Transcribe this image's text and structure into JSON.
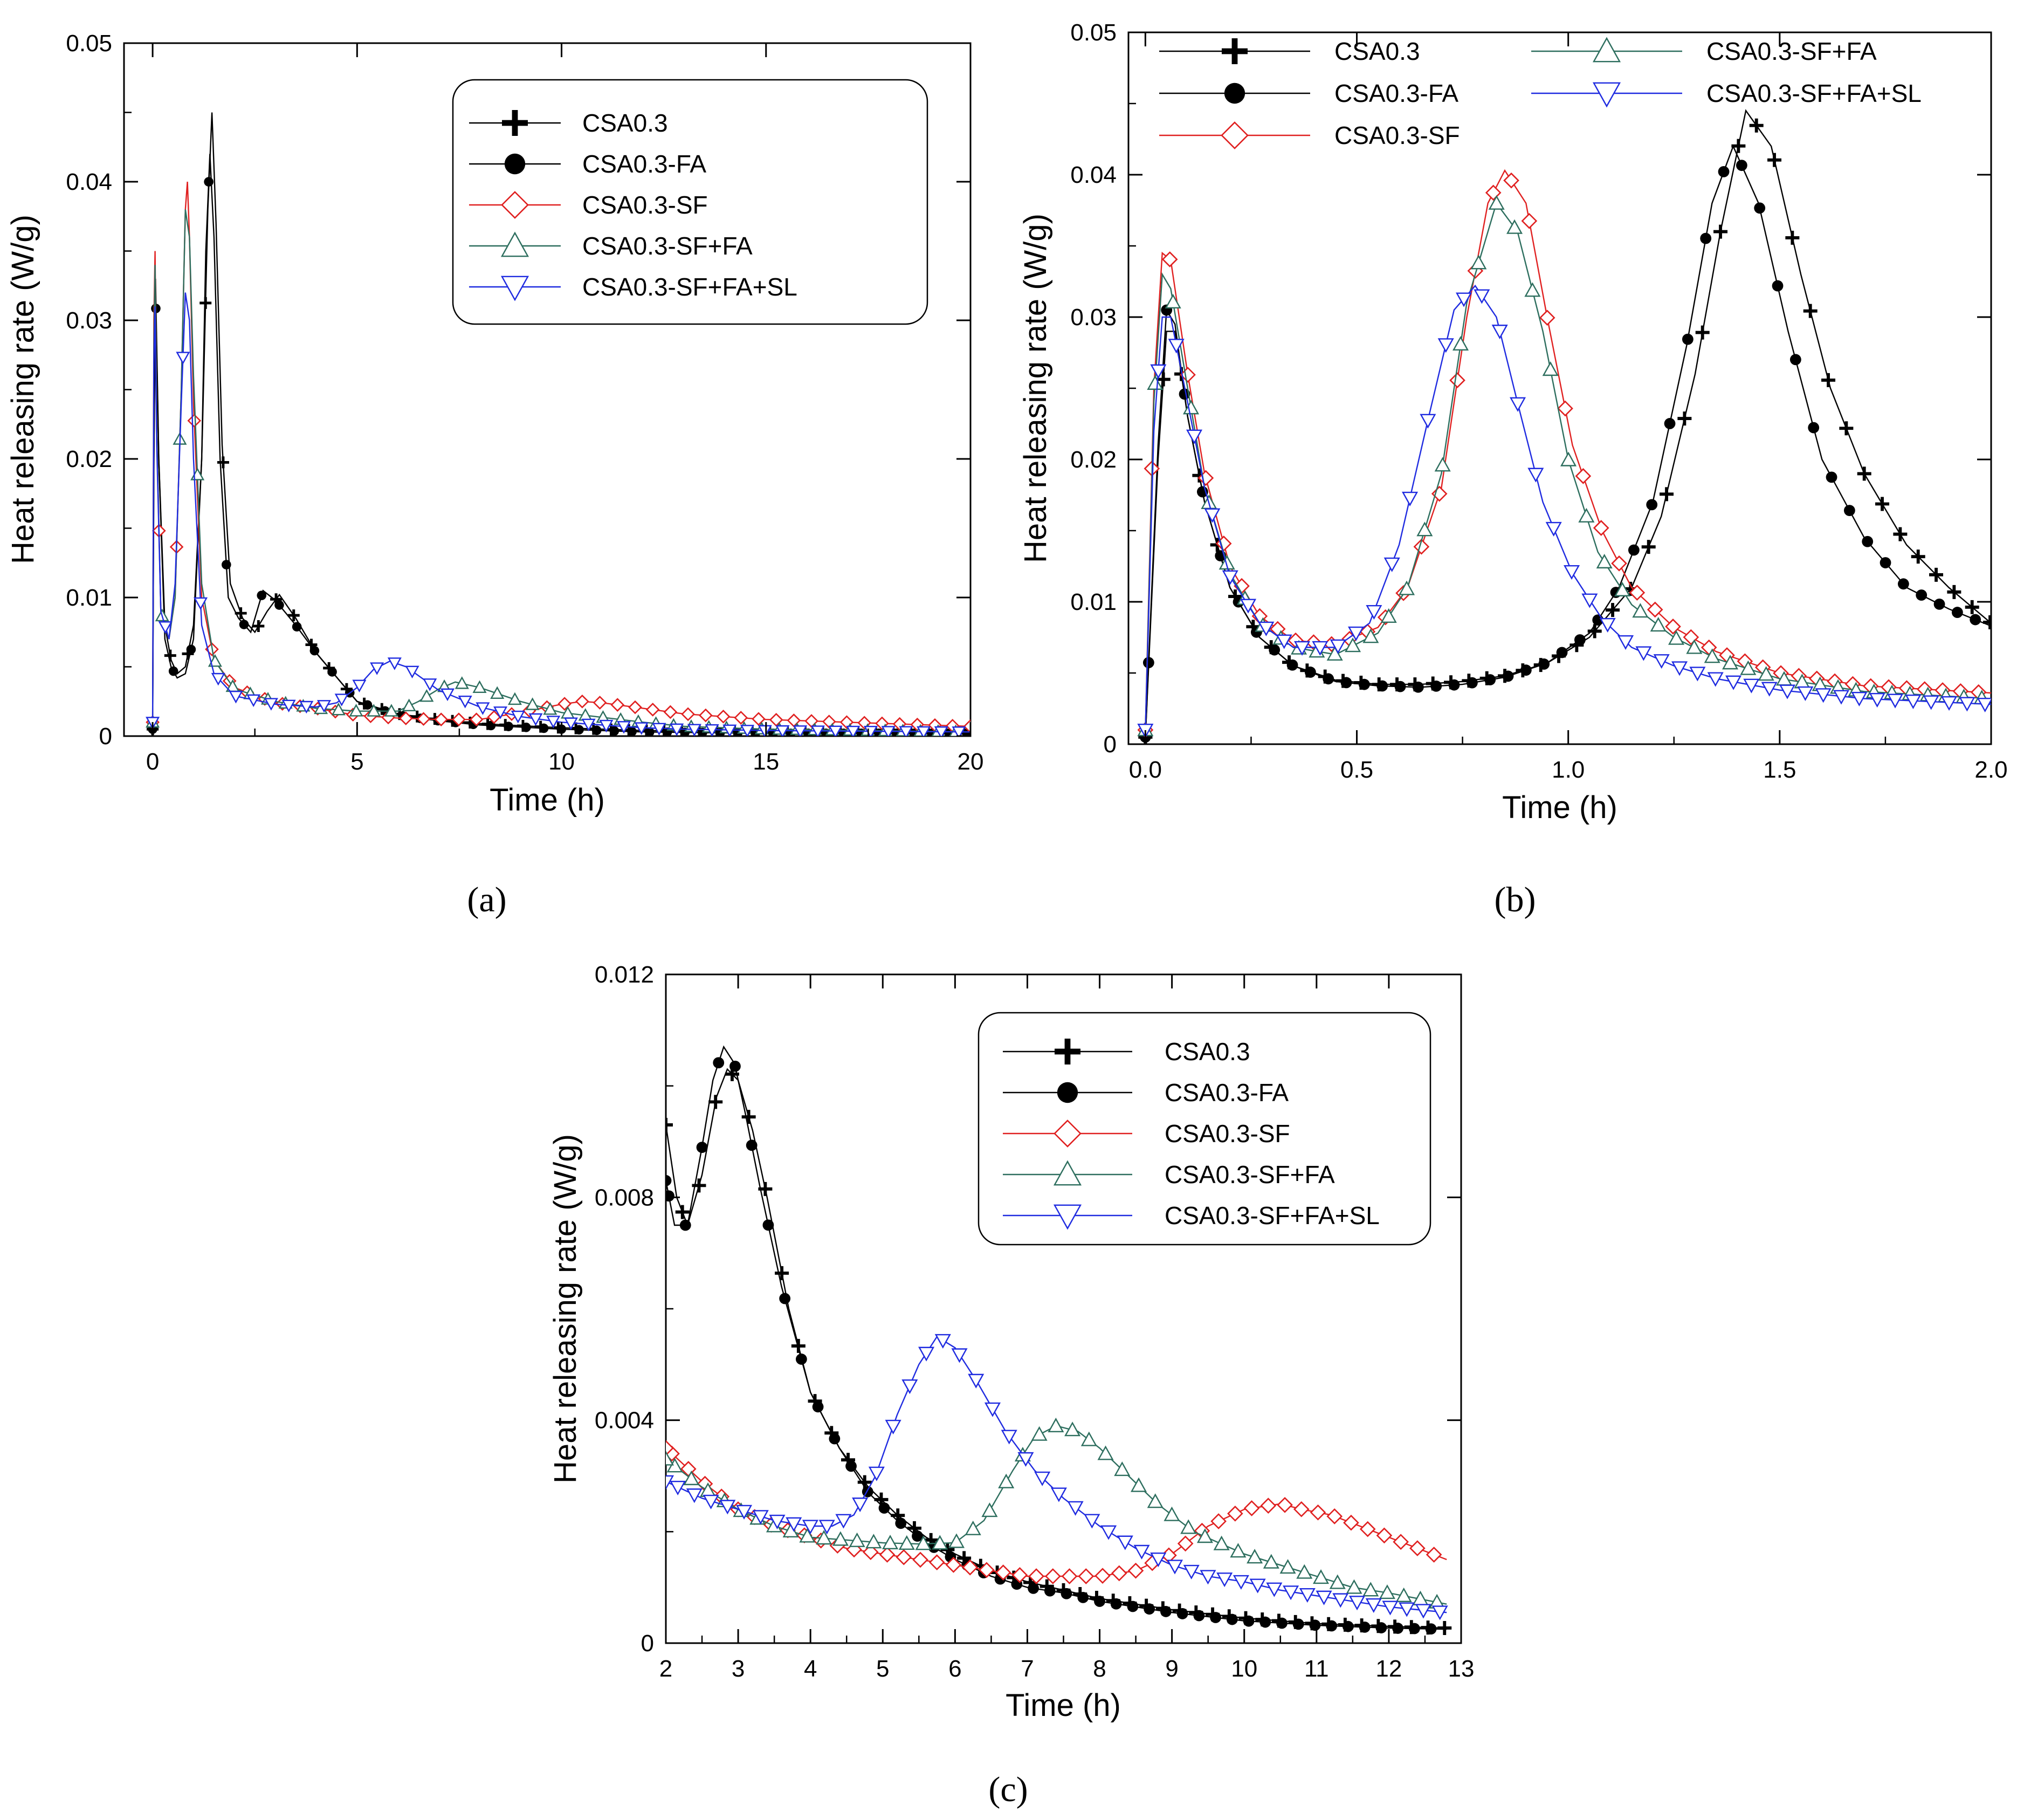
{
  "figure": {
    "panel_labels": [
      "(a)",
      "(b)",
      "(c)"
    ]
  },
  "legend": {
    "entries": [
      "CSA0.3",
      "CSA0.3-FA",
      "CSA0.3-SF",
      "CSA0.3-SF+FA",
      "CSA0.3-SF+FA+SL"
    ]
  },
  "colors": {
    "CSA0.3": "#000000",
    "CSA0.3-FA": "#000000",
    "CSA0.3-SF": "#e02020",
    "CSA0.3-SF+FA": "#2d6e5e",
    "CSA0.3-SF+FA+SL": "#1f2be0"
  },
  "markers": {
    "CSA0.3": "plus-icon",
    "CSA0.3-FA": "filled-circle-icon",
    "CSA0.3-SF": "diamond-icon",
    "CSA0.3-SF+FA": "triangle-up-icon",
    "CSA0.3-SF+FA+SL": "triangle-down-icon"
  },
  "chart_data": [
    {
      "id": "a",
      "type": "line",
      "panel_label": "(a)",
      "xlabel": "Time (h)",
      "ylabel": "Heat releasing rate (W/g)",
      "xlim": [
        -0.7,
        20
      ],
      "ylim": [
        0,
        0.05
      ],
      "xticks": [
        0,
        5,
        10,
        15,
        20
      ],
      "xtick_labels": [
        "0",
        "5",
        "10",
        "15",
        "20"
      ],
      "yticks": [
        0,
        0.01,
        0.02,
        0.03,
        0.04,
        0.05
      ],
      "ytick_labels": [
        "0",
        "0.01",
        "0.02",
        "0.03",
        "0.04",
        "0.05"
      ],
      "legend_position": "top-right",
      "series": [
        {
          "name": "CSA0.3",
          "x": [
            0,
            0.03,
            0.07,
            0.15,
            0.3,
            0.45,
            0.6,
            0.8,
            1.0,
            1.2,
            1.35,
            1.45,
            1.55,
            1.7,
            1.9,
            2.2,
            2.5,
            2.8,
            3.1,
            3.5,
            4.0,
            5,
            6,
            7,
            8,
            10,
            12,
            15,
            20
          ],
          "y": [
            0.0005,
            0.02,
            0.033,
            0.02,
            0.008,
            0.0055,
            0.0045,
            0.005,
            0.008,
            0.02,
            0.038,
            0.045,
            0.037,
            0.021,
            0.011,
            0.0085,
            0.0075,
            0.009,
            0.0102,
            0.0085,
            0.006,
            0.0025,
            0.0016,
            0.0012,
            0.0009,
            0.0006,
            0.0004,
            0.0003,
            0.0002
          ]
        },
        {
          "name": "CSA0.3-FA",
          "x": [
            0,
            0.03,
            0.07,
            0.15,
            0.3,
            0.45,
            0.6,
            0.8,
            1.0,
            1.2,
            1.3,
            1.4,
            1.5,
            1.65,
            1.85,
            2.1,
            2.4,
            2.7,
            3.0,
            3.5,
            4.0,
            5,
            6,
            7,
            8,
            10,
            12,
            15,
            20
          ],
          "y": [
            0.0005,
            0.02,
            0.032,
            0.02,
            0.007,
            0.005,
            0.0042,
            0.0045,
            0.007,
            0.02,
            0.035,
            0.042,
            0.036,
            0.02,
            0.01,
            0.0085,
            0.0075,
            0.0105,
            0.0098,
            0.008,
            0.006,
            0.0025,
            0.0015,
            0.0011,
            0.0008,
            0.0005,
            0.0003,
            0.0002,
            0.0002
          ]
        },
        {
          "name": "CSA0.3-SF",
          "x": [
            0,
            0.03,
            0.06,
            0.1,
            0.2,
            0.4,
            0.55,
            0.7,
            0.8,
            0.85,
            0.9,
            1.0,
            1.2,
            1.5,
            2,
            3,
            4,
            5,
            6,
            7,
            8,
            9,
            10,
            10.5,
            11,
            12,
            13,
            15,
            20
          ],
          "y": [
            0.001,
            0.03,
            0.035,
            0.022,
            0.009,
            0.007,
            0.01,
            0.025,
            0.038,
            0.04,
            0.036,
            0.024,
            0.01,
            0.0055,
            0.0035,
            0.0024,
            0.002,
            0.0015,
            0.0013,
            0.0012,
            0.0012,
            0.0017,
            0.0023,
            0.0025,
            0.0024,
            0.002,
            0.0016,
            0.0012,
            0.0007
          ]
        },
        {
          "name": "CSA0.3-SF+FA",
          "x": [
            0,
            0.03,
            0.06,
            0.1,
            0.2,
            0.4,
            0.55,
            0.7,
            0.8,
            0.9,
            1.0,
            1.2,
            1.5,
            2,
            3,
            4,
            5,
            6,
            6.5,
            7,
            7.4,
            8,
            9,
            10,
            12,
            13,
            15,
            20
          ],
          "y": [
            0.001,
            0.028,
            0.034,
            0.022,
            0.009,
            0.007,
            0.01,
            0.025,
            0.038,
            0.036,
            0.026,
            0.011,
            0.0055,
            0.0034,
            0.0025,
            0.002,
            0.0018,
            0.0018,
            0.0025,
            0.0034,
            0.0039,
            0.0035,
            0.0025,
            0.0017,
            0.001,
            0.0007,
            0.0005,
            0.0003
          ]
        },
        {
          "name": "CSA0.3-SF+FA+SL",
          "x": [
            0,
            0.03,
            0.06,
            0.1,
            0.2,
            0.4,
            0.55,
            0.7,
            0.8,
            0.9,
            1.0,
            1.2,
            1.5,
            2,
            3,
            4,
            4.5,
            5,
            5.4,
            5.8,
            6.2,
            7,
            8,
            9,
            10,
            12,
            13,
            15,
            20
          ],
          "y": [
            0.001,
            0.027,
            0.031,
            0.021,
            0.009,
            0.007,
            0.011,
            0.024,
            0.032,
            0.03,
            0.02,
            0.008,
            0.0045,
            0.0029,
            0.0023,
            0.0021,
            0.0024,
            0.0035,
            0.0048,
            0.0054,
            0.005,
            0.0033,
            0.0021,
            0.0014,
            0.001,
            0.0006,
            0.0005,
            0.0004,
            0.0003
          ]
        }
      ]
    },
    {
      "id": "b",
      "type": "line",
      "panel_label": "(b)",
      "xlabel": "Time (h)",
      "ylabel": "Heat releasing rate (W/g)",
      "xlim": [
        -0.04,
        2.0
      ],
      "ylim": [
        0,
        0.05
      ],
      "xticks": [
        0,
        0.5,
        1.0,
        1.5,
        2.0
      ],
      "xtick_labels": [
        "0.0",
        "0.5",
        "1.0",
        "1.5",
        "2.0"
      ],
      "yticks": [
        0,
        0.01,
        0.02,
        0.03,
        0.04,
        0.05
      ],
      "ytick_labels": [
        "0",
        "0.01",
        "0.02",
        "0.03",
        "0.04",
        "0.05"
      ],
      "legend_position": "top",
      "series": [
        {
          "name": "CSA0.3",
          "x": [
            0,
            0.03,
            0.05,
            0.07,
            0.1,
            0.14,
            0.2,
            0.27,
            0.35,
            0.45,
            0.55,
            0.65,
            0.75,
            0.85,
            0.95,
            1.05,
            1.15,
            1.22,
            1.3,
            1.36,
            1.42,
            1.48,
            1.55,
            1.62,
            1.7,
            1.8,
            1.9,
            2.0
          ],
          "y": [
            0.0005,
            0.02,
            0.029,
            0.029,
            0.023,
            0.017,
            0.011,
            0.0075,
            0.0055,
            0.0045,
            0.0042,
            0.0042,
            0.0044,
            0.0048,
            0.0057,
            0.0075,
            0.011,
            0.016,
            0.026,
            0.036,
            0.0445,
            0.042,
            0.033,
            0.025,
            0.019,
            0.014,
            0.011,
            0.0085
          ]
        },
        {
          "name": "CSA0.3-FA",
          "x": [
            0,
            0.03,
            0.05,
            0.07,
            0.1,
            0.14,
            0.2,
            0.27,
            0.35,
            0.45,
            0.55,
            0.65,
            0.75,
            0.85,
            0.95,
            1.05,
            1.12,
            1.2,
            1.28,
            1.34,
            1.39,
            1.45,
            1.52,
            1.6,
            1.7,
            1.8,
            1.9,
            2.0
          ],
          "y": [
            0.0005,
            0.021,
            0.0305,
            0.0295,
            0.023,
            0.017,
            0.011,
            0.0075,
            0.0055,
            0.0044,
            0.0041,
            0.004,
            0.0042,
            0.0047,
            0.0057,
            0.0078,
            0.011,
            0.017,
            0.028,
            0.038,
            0.042,
            0.038,
            0.029,
            0.02,
            0.0145,
            0.011,
            0.0095,
            0.0083
          ]
        },
        {
          "name": "CSA0.3-SF",
          "x": [
            0,
            0.02,
            0.04,
            0.06,
            0.1,
            0.14,
            0.2,
            0.27,
            0.35,
            0.45,
            0.55,
            0.62,
            0.7,
            0.76,
            0.81,
            0.85,
            0.9,
            0.95,
            1.01,
            1.08,
            1.15,
            1.25,
            1.35,
            1.5,
            1.7,
            2.0
          ],
          "y": [
            0.001,
            0.025,
            0.0345,
            0.034,
            0.026,
            0.019,
            0.0125,
            0.009,
            0.0073,
            0.007,
            0.0082,
            0.011,
            0.018,
            0.03,
            0.038,
            0.0403,
            0.038,
            0.03,
            0.021,
            0.015,
            0.011,
            0.0082,
            0.0065,
            0.005,
            0.0041,
            0.0036
          ]
        },
        {
          "name": "CSA0.3-SF+FA",
          "x": [
            0,
            0.02,
            0.04,
            0.06,
            0.1,
            0.14,
            0.2,
            0.27,
            0.35,
            0.45,
            0.55,
            0.62,
            0.7,
            0.76,
            0.83,
            0.88,
            0.94,
            1.0,
            1.07,
            1.15,
            1.25,
            1.35,
            1.5,
            1.7,
            2.0
          ],
          "y": [
            0.001,
            0.024,
            0.033,
            0.032,
            0.025,
            0.018,
            0.012,
            0.0085,
            0.0068,
            0.0063,
            0.0078,
            0.011,
            0.019,
            0.031,
            0.038,
            0.036,
            0.029,
            0.02,
            0.0135,
            0.0098,
            0.0075,
            0.006,
            0.0046,
            0.0037,
            0.0032
          ]
        },
        {
          "name": "CSA0.3-SF+FA+SL",
          "x": [
            0,
            0.02,
            0.04,
            0.06,
            0.1,
            0.14,
            0.2,
            0.27,
            0.35,
            0.45,
            0.53,
            0.6,
            0.67,
            0.73,
            0.78,
            0.83,
            0.88,
            0.94,
            1.01,
            1.08,
            1.15,
            1.25,
            1.35,
            1.5,
            1.7,
            2.0
          ],
          "y": [
            0.001,
            0.022,
            0.03,
            0.03,
            0.024,
            0.018,
            0.0118,
            0.0085,
            0.0068,
            0.0068,
            0.0085,
            0.014,
            0.023,
            0.0305,
            0.0322,
            0.03,
            0.024,
            0.017,
            0.012,
            0.0088,
            0.0068,
            0.0055,
            0.0046,
            0.0038,
            0.0032,
            0.0028
          ]
        }
      ]
    },
    {
      "id": "c",
      "type": "line",
      "panel_label": "(c)",
      "xlabel": "Time (h)",
      "ylabel": "Heat releasing rate (W/g)",
      "xlim": [
        2,
        13
      ],
      "ylim": [
        0,
        0.012
      ],
      "xticks": [
        2,
        3,
        4,
        5,
        6,
        7,
        8,
        9,
        10,
        11,
        12,
        13
      ],
      "xtick_labels": [
        "2",
        "3",
        "4",
        "5",
        "6",
        "7",
        "8",
        "9",
        "10",
        "11",
        "12",
        "13"
      ],
      "yticks": [
        0,
        0.004,
        0.008,
        0.012
      ],
      "ytick_labels": [
        "0",
        "0.004",
        "0.008",
        "0.012"
      ],
      "legend_position": "top-right",
      "series": [
        {
          "name": "CSA0.3",
          "x": [
            2.0,
            2.15,
            2.3,
            2.5,
            2.7,
            2.85,
            3.0,
            3.2,
            3.4,
            3.7,
            4.0,
            4.4,
            4.8,
            5.2,
            5.6,
            6.0,
            6.5,
            7.0,
            7.5,
            8,
            9,
            10,
            11,
            12,
            12.8
          ],
          "y": [
            0.0093,
            0.008,
            0.0075,
            0.0084,
            0.0098,
            0.0103,
            0.0101,
            0.0092,
            0.008,
            0.006,
            0.0045,
            0.0035,
            0.0028,
            0.0023,
            0.0019,
            0.0016,
            0.0013,
            0.0011,
            0.00095,
            0.0008,
            0.0006,
            0.00045,
            0.00035,
            0.0003,
            0.00027
          ]
        },
        {
          "name": "CSA0.3-FA",
          "x": [
            2.0,
            2.12,
            2.3,
            2.5,
            2.65,
            2.8,
            2.95,
            3.1,
            3.3,
            3.6,
            4.0,
            4.4,
            4.8,
            5.2,
            5.6,
            6.0,
            6.5,
            7.0,
            7.5,
            8,
            9,
            10,
            11,
            12,
            12.8
          ],
          "y": [
            0.0083,
            0.0075,
            0.0075,
            0.0089,
            0.0101,
            0.0107,
            0.0104,
            0.0095,
            0.0082,
            0.0064,
            0.0045,
            0.0035,
            0.0027,
            0.0022,
            0.0018,
            0.0015,
            0.0012,
            0.001,
            0.0009,
            0.00075,
            0.00055,
            0.0004,
            0.00032,
            0.00027,
            0.00025
          ]
        },
        {
          "name": "CSA0.3-SF",
          "x": [
            2,
            2.5,
            3,
            3.5,
            4,
            4.5,
            5,
            5.5,
            6,
            6.5,
            7,
            7.5,
            8,
            8.5,
            9,
            9.5,
            10,
            10.5,
            10.8,
            11.2,
            11.6,
            12,
            12.4,
            12.8
          ],
          "y": [
            0.0035,
            0.0029,
            0.0024,
            0.0021,
            0.0019,
            0.0017,
            0.0016,
            0.0015,
            0.0014,
            0.0013,
            0.0012,
            0.0012,
            0.0012,
            0.0013,
            0.0016,
            0.0021,
            0.0024,
            0.0025,
            0.0024,
            0.0023,
            0.0021,
            0.0019,
            0.0017,
            0.0015
          ]
        },
        {
          "name": "CSA0.3-SF+FA",
          "x": [
            2,
            2.5,
            3,
            3.5,
            4,
            4.5,
            5,
            5.5,
            6,
            6.4,
            6.8,
            7.1,
            7.4,
            7.7,
            8,
            8.4,
            8.8,
            9.3,
            10,
            10.5,
            11,
            11.5,
            12,
            12.4,
            12.8
          ],
          "y": [
            0.0033,
            0.0028,
            0.0024,
            0.0021,
            0.0019,
            0.00185,
            0.0018,
            0.00178,
            0.0018,
            0.0022,
            0.0031,
            0.0037,
            0.0039,
            0.0038,
            0.0035,
            0.003,
            0.0025,
            0.002,
            0.0016,
            0.0014,
            0.0012,
            0.001,
            0.0009,
            0.0008,
            0.0007
          ]
        },
        {
          "name": "CSA0.3-SF+FA+SL",
          "x": [
            2,
            2.5,
            3,
            3.5,
            4,
            4.3,
            4.6,
            4.9,
            5.2,
            5.5,
            5.75,
            6.0,
            6.3,
            6.7,
            7.1,
            7.5,
            8,
            8.5,
            9,
            9.5,
            10,
            10.5,
            11,
            11.5,
            12,
            12.4,
            12.8
          ],
          "y": [
            0.0029,
            0.0026,
            0.0024,
            0.0022,
            0.0021,
            0.0021,
            0.0023,
            0.003,
            0.0041,
            0.005,
            0.0055,
            0.0053,
            0.0047,
            0.0038,
            0.0031,
            0.0026,
            0.0021,
            0.0017,
            0.0014,
            0.0012,
            0.0011,
            0.00095,
            0.00085,
            0.00075,
            0.00065,
            0.0006,
            0.00055
          ]
        }
      ]
    }
  ]
}
